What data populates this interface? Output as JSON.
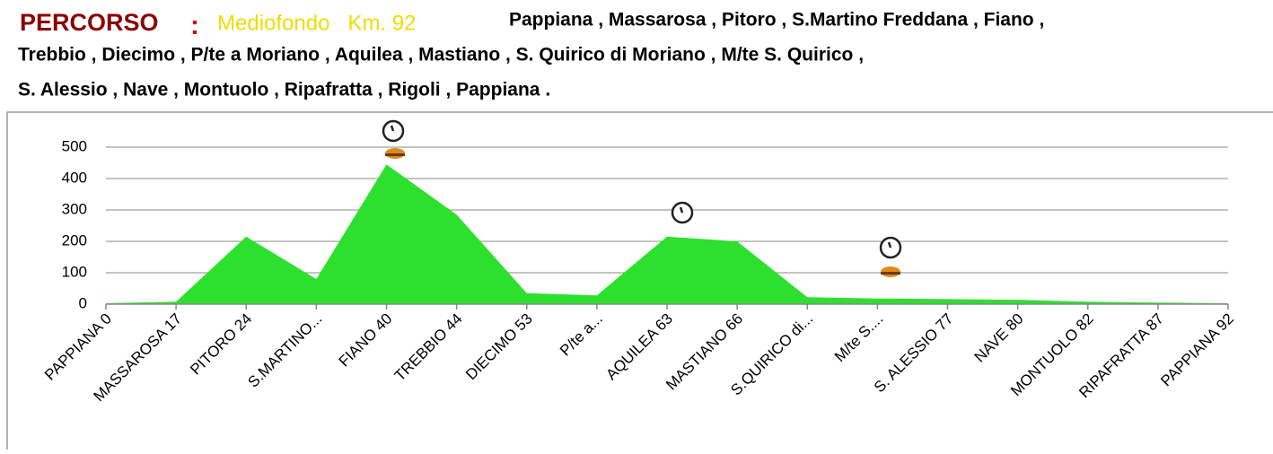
{
  "header": {
    "title": "PERCORSO",
    "separator": ":",
    "subtitle": "Mediofondo   Km. 92",
    "route": [
      "Pappiana , Massarosa , Pitoro , S.Martino Freddana , Fiano ,",
      "Trebbio , Diecimo , P/te a Moriano , Aquilea , Mastiano , S. Quirico di Moriano , M/te S. Quirico ,",
      "S. Alessio , Nave , Montuolo , Ripafratta , Rigoli , Pappiana ."
    ]
  },
  "chart_data": {
    "type": "area",
    "categories": [
      "PAPPIANA 0",
      "MASSAROSA 17",
      "PITORO 24",
      "S.MARTINO...",
      "FIANO 40",
      "TREBBIO 44",
      "DIECIMO 53",
      "P/te a...",
      "AQUILEA 63",
      "MASTIANO 66",
      "S.QUIRICO di...",
      "M/te S....",
      "S. ALESSIO 77",
      "NAVE 80",
      "MONTUOLO 82",
      "RIPAFRATTA 87",
      "PAPPIANA 92"
    ],
    "values": [
      3,
      8,
      215,
      80,
      445,
      285,
      35,
      28,
      215,
      200,
      22,
      18,
      16,
      14,
      8,
      5,
      3
    ],
    "color": "#2ee02e",
    "ylim": [
      0,
      500
    ],
    "yticks": [
      0,
      100,
      200,
      300,
      400,
      500
    ],
    "grid": true
  }
}
